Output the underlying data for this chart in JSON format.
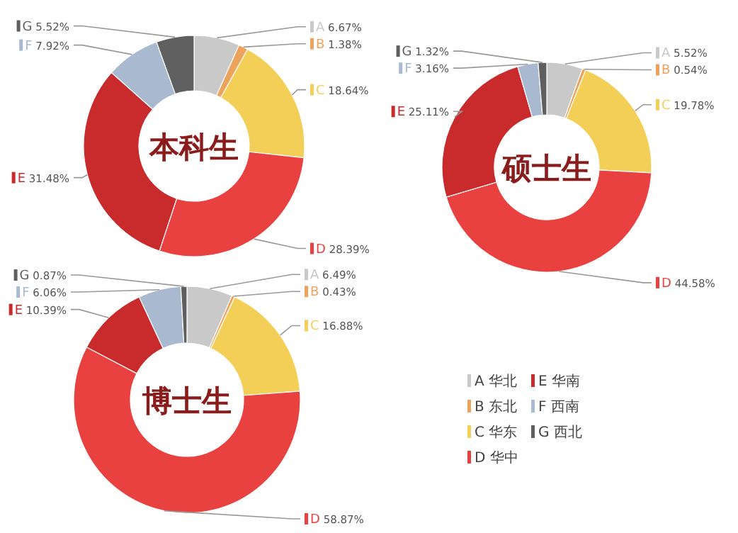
{
  "chart_data": [
    {
      "type": "donut",
      "legend": "top left",
      "title": "本科生",
      "categories": [
        "A",
        "B",
        "C",
        "D",
        "E",
        "F",
        "G"
      ],
      "values": [
        6.67,
        1.38,
        18.64,
        28.39,
        31.48,
        7.92,
        5.52
      ],
      "value_labels": [
        "6.67%",
        "1.38%",
        "18.64%",
        "28.39%",
        "31.48%",
        "7.92%",
        "5.52%"
      ],
      "colors": [
        "#c9c9c9",
        "#eda35c",
        "#f3cf58",
        "#e9413f",
        "#c92a2c",
        "#a9bad0",
        "#5f5f5f"
      ]
    },
    {
      "type": "donut",
      "legend": "top left",
      "title": "硕士生",
      "categories": [
        "A",
        "B",
        "C",
        "D",
        "E",
        "F",
        "G"
      ],
      "values": [
        5.52,
        0.54,
        19.78,
        44.58,
        25.11,
        3.16,
        1.32
      ],
      "value_labels": [
        "5.52%",
        "0.54%",
        "19.78%",
        "44.58%",
        "25.11%",
        "3.16%",
        "1.32%"
      ],
      "colors": [
        "#c9c9c9",
        "#eda35c",
        "#f3cf58",
        "#e9413f",
        "#c92a2c",
        "#a9bad0",
        "#5f5f5f"
      ]
    },
    {
      "type": "donut",
      "legend": "top left",
      "title": "博士生",
      "categories": [
        "A",
        "B",
        "C",
        "D",
        "E",
        "F",
        "G"
      ],
      "values": [
        6.49,
        0.43,
        16.88,
        58.87,
        10.39,
        6.06,
        0.87
      ],
      "value_labels": [
        "6.49%",
        "0.43%",
        "16.88%",
        "58.87%",
        "10.39%",
        "6.06%",
        "0.87%"
      ],
      "colors": [
        "#c9c9c9",
        "#eda35c",
        "#f3cf58",
        "#e9413f",
        "#c92a2c",
        "#a9bad0",
        "#5f5f5f"
      ]
    },
    {
      "type": "other",
      "categories": [
        "A 华北",
        "B 东北",
        "C 华东",
        "D 华中",
        "E 华南",
        "F 西南",
        "G 西北"
      ],
      "colors": [
        "#c9c9c9",
        "#eda35c",
        "#f3cf58",
        "#e9413f",
        "#c92a2c",
        "#a9bad0",
        "#5f5f5f"
      ]
    }
  ]
}
